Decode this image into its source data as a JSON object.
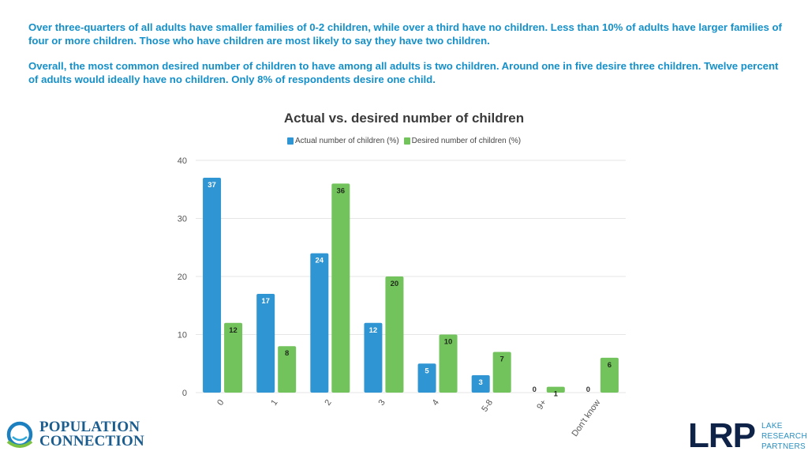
{
  "intro": {
    "paragraph1": "Over three-quarters of all adults have smaller families of 0-2 children, while over a third have no children. Less than 10% of adults have larger families of four or more children. Those who have children are most likely to say they have two children.",
    "paragraph2": "Overall, the most common desired number of children to have among all adults is two children. Around one in five desire three children. Twelve percent of adults would ideally have no children. Only 8% of respondents desire one child."
  },
  "colors": {
    "actual": "#2f95d3",
    "desired": "#73c35d",
    "grid": "#e6e6e6",
    "text": "#3a3a3a"
  },
  "chart_data": {
    "type": "bar",
    "title": "Actual vs. desired number of children",
    "xlabel": "",
    "ylabel": "",
    "ylim": [
      0,
      40
    ],
    "yticks": [
      0,
      10,
      20,
      30,
      40
    ],
    "grid": true,
    "legend_position": "top-center",
    "categories": [
      "0",
      "1",
      "2",
      "3",
      "4",
      "5-8",
      "9+",
      "Don't know"
    ],
    "series": [
      {
        "name": "Actual number of children (%)",
        "values": [
          37,
          17,
          24,
          12,
          5,
          3,
          0,
          0
        ]
      },
      {
        "name": "Desired number of children (%)",
        "values": [
          12,
          8,
          36,
          20,
          10,
          7,
          1,
          6
        ]
      }
    ]
  },
  "logos": {
    "left": {
      "line1": "POPULATION",
      "line2": "CONNECTION"
    },
    "right": {
      "mark": "LRP",
      "line1": "LAKE",
      "line2": "RESEARCH",
      "line3": "PARTNERS"
    }
  }
}
